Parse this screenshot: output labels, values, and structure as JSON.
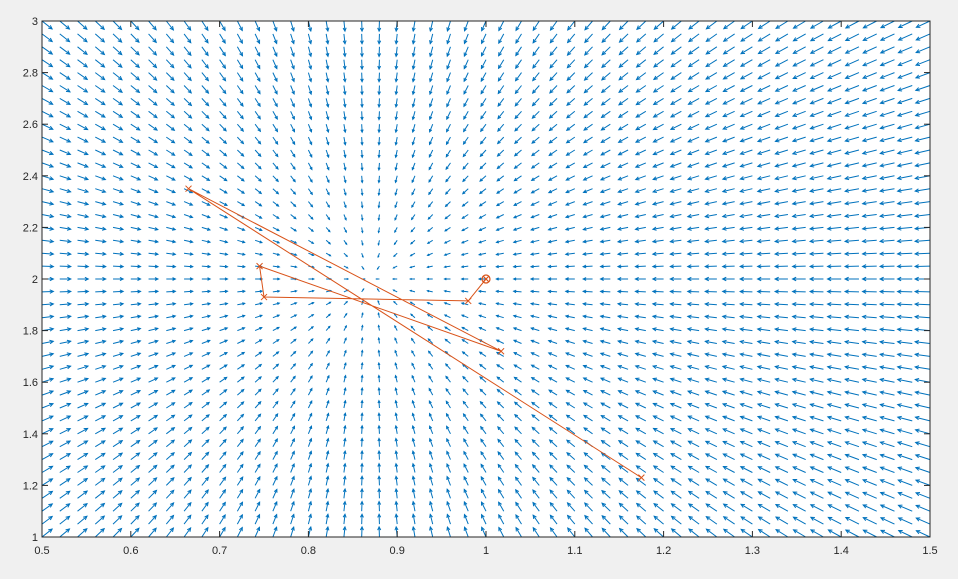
{
  "chart_data": {
    "type": "scatter",
    "title": "",
    "xlabel": "",
    "ylabel": "",
    "xlim": [
      0.5,
      1.5
    ],
    "ylim": [
      1,
      3
    ],
    "xticks": [
      "0.5",
      "0.6",
      "0.7",
      "0.8",
      "0.9",
      "1",
      "1.1",
      "1.2",
      "1.3",
      "1.4",
      "1.5"
    ],
    "yticks": [
      "1",
      "1.2",
      "1.4",
      "1.6",
      "1.8",
      "2",
      "2.2",
      "2.4",
      "2.6",
      "2.8",
      "3"
    ],
    "grid": false,
    "legend": "none",
    "quiver_field": {
      "description": "vector field converging toward the minimum",
      "center": [
        0.87,
        2.0
      ],
      "x_range": [
        0.5,
        1.5
      ],
      "y_range": [
        1,
        3
      ],
      "nx": 51,
      "ny": 41,
      "color": "#0072bd"
    },
    "series": [
      {
        "marker": "x",
        "color": "#d95319",
        "x": [
          1.0,
          0.98,
          0.75,
          0.745,
          1.017,
          0.665,
          1.175
        ],
        "y": [
          2.0,
          1.915,
          1.93,
          2.05,
          1.72,
          2.35,
          1.23
        ]
      }
    ],
    "start_point": {
      "x": 1.0,
      "y": 2.0,
      "marker": "circle-x",
      "color": "#d95319"
    }
  },
  "colors": {
    "figure_background": "#f0f0f0",
    "axes_background": "#ffffff",
    "axes_line": "#262626",
    "quiver": "#0072bd",
    "path": "#d95319"
  }
}
